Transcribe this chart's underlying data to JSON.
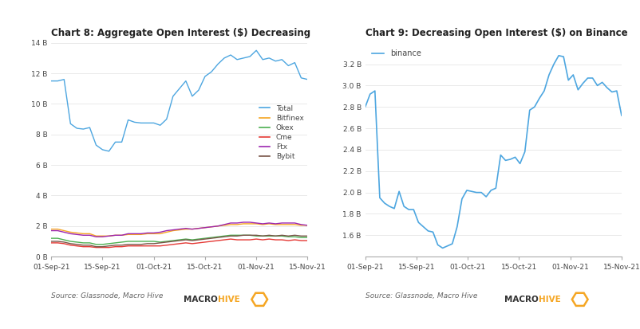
{
  "chart8": {
    "title": "Chart 8: Aggregate Open Interest ($) Decreasing",
    "x_labels": [
      "01-Sep-21",
      "15-Sep-21",
      "01-Oct-21",
      "15-Oct-21",
      "01-Nov-21",
      "15-Nov-21"
    ],
    "ylim": [
      0,
      14000000000
    ],
    "yticks": [
      0,
      2000000000,
      4000000000,
      6000000000,
      8000000000,
      10000000000,
      12000000000,
      14000000000
    ],
    "ytick_labels": [
      "0 B",
      "2 B",
      "4 B",
      "6 B",
      "8 B",
      "10 B",
      "12 B",
      "14 B"
    ],
    "series": {
      "Total": {
        "color": "#4da6e0",
        "values": [
          11500000000,
          11500000000,
          11600000000,
          8700000000,
          8400000000,
          8350000000,
          8450000000,
          7300000000,
          7000000000,
          6900000000,
          7500000000,
          7500000000,
          8950000000,
          8800000000,
          8750000000,
          8750000000,
          8750000000,
          8600000000,
          9000000000,
          10500000000,
          11000000000,
          11500000000,
          10500000000,
          10900000000,
          11800000000,
          12100000000,
          12600000000,
          13000000000,
          13200000000,
          12900000000,
          13000000000,
          13100000000,
          13500000000,
          12900000000,
          13000000000,
          12800000000,
          12900000000,
          12500000000,
          12700000000,
          11700000000,
          11600000000
        ]
      },
      "Bitfinex": {
        "color": "#f5a623",
        "values": [
          1800000000,
          1800000000,
          1700000000,
          1600000000,
          1550000000,
          1500000000,
          1500000000,
          1350000000,
          1350000000,
          1350000000,
          1400000000,
          1400000000,
          1450000000,
          1450000000,
          1450000000,
          1500000000,
          1500000000,
          1500000000,
          1600000000,
          1700000000,
          1750000000,
          1800000000,
          1800000000,
          1850000000,
          1900000000,
          1950000000,
          2000000000,
          2050000000,
          2100000000,
          2100000000,
          2150000000,
          2150000000,
          2150000000,
          2100000000,
          2150000000,
          2100000000,
          2100000000,
          2100000000,
          2100000000,
          2050000000,
          2050000000
        ]
      },
      "Okex": {
        "color": "#4caf50",
        "values": [
          1200000000,
          1200000000,
          1100000000,
          1000000000,
          950000000,
          900000000,
          900000000,
          800000000,
          800000000,
          850000000,
          900000000,
          950000000,
          1000000000,
          1000000000,
          1000000000,
          1000000000,
          1000000000,
          950000000,
          1000000000,
          1050000000,
          1100000000,
          1150000000,
          1100000000,
          1150000000,
          1200000000,
          1250000000,
          1300000000,
          1350000000,
          1400000000,
          1400000000,
          1400000000,
          1400000000,
          1350000000,
          1350000000,
          1350000000,
          1350000000,
          1350000000,
          1300000000,
          1300000000,
          1250000000,
          1250000000
        ]
      },
      "Cme": {
        "color": "#e53935",
        "values": [
          900000000,
          900000000,
          850000000,
          750000000,
          700000000,
          650000000,
          650000000,
          600000000,
          600000000,
          600000000,
          650000000,
          650000000,
          700000000,
          700000000,
          700000000,
          700000000,
          700000000,
          700000000,
          750000000,
          800000000,
          850000000,
          900000000,
          850000000,
          900000000,
          950000000,
          1000000000,
          1050000000,
          1100000000,
          1150000000,
          1100000000,
          1100000000,
          1100000000,
          1150000000,
          1100000000,
          1150000000,
          1100000000,
          1100000000,
          1050000000,
          1100000000,
          1050000000,
          1050000000
        ]
      },
      "Ftx": {
        "color": "#9c27b0",
        "values": [
          1700000000,
          1700000000,
          1600000000,
          1500000000,
          1450000000,
          1400000000,
          1400000000,
          1300000000,
          1300000000,
          1350000000,
          1400000000,
          1400000000,
          1500000000,
          1500000000,
          1500000000,
          1550000000,
          1550000000,
          1600000000,
          1700000000,
          1750000000,
          1800000000,
          1850000000,
          1800000000,
          1850000000,
          1900000000,
          1950000000,
          2000000000,
          2100000000,
          2200000000,
          2200000000,
          2250000000,
          2250000000,
          2200000000,
          2150000000,
          2200000000,
          2150000000,
          2200000000,
          2200000000,
          2200000000,
          2100000000,
          2050000000
        ]
      },
      "Bybit": {
        "color": "#795548",
        "values": [
          1000000000,
          1000000000,
          950000000,
          850000000,
          800000000,
          750000000,
          750000000,
          650000000,
          650000000,
          700000000,
          750000000,
          750000000,
          800000000,
          800000000,
          800000000,
          850000000,
          850000000,
          900000000,
          950000000,
          1000000000,
          1050000000,
          1100000000,
          1050000000,
          1100000000,
          1150000000,
          1200000000,
          1250000000,
          1300000000,
          1350000000,
          1350000000,
          1400000000,
          1400000000,
          1400000000,
          1350000000,
          1400000000,
          1350000000,
          1400000000,
          1350000000,
          1400000000,
          1350000000,
          1350000000
        ]
      }
    },
    "legend_names": [
      "Total",
      "Bitfinex",
      "Okex",
      "Cme",
      "Ftx",
      "Bybit"
    ],
    "source": "Source: Glassnode, Macro Hive"
  },
  "chart9": {
    "title": "Chart 9: Decreasing Open Interest ($) on Binance",
    "x_labels": [
      "01-Sep-21",
      "15-Sep-21",
      "01-Oct-21",
      "15-Oct-21",
      "01-Nov-21",
      "15-Nov-21"
    ],
    "ylim": [
      1400000000,
      3400000000
    ],
    "yticks": [
      1600000000,
      1800000000,
      2000000000,
      2200000000,
      2400000000,
      2600000000,
      2800000000,
      3000000000,
      3200000000
    ],
    "ytick_labels": [
      "1.6 B",
      "1.8 B",
      "2.0 B",
      "2.2 B",
      "2.4 B",
      "2.6 B",
      "2.8 B",
      "3.0 B",
      "3.2 B"
    ],
    "series": {
      "binance": {
        "color": "#4da6e0",
        "values": [
          2800000000,
          2920000000,
          2950000000,
          1950000000,
          1900000000,
          1870000000,
          1850000000,
          2010000000,
          1870000000,
          1840000000,
          1840000000,
          1720000000,
          1680000000,
          1640000000,
          1630000000,
          1510000000,
          1480000000,
          1500000000,
          1520000000,
          1680000000,
          1940000000,
          2020000000,
          2010000000,
          2000000000,
          2000000000,
          1960000000,
          2020000000,
          2040000000,
          2350000000,
          2300000000,
          2310000000,
          2330000000,
          2270000000,
          2380000000,
          2770000000,
          2800000000,
          2880000000,
          2950000000,
          3100000000,
          3200000000,
          3280000000,
          3270000000,
          3050000000,
          3100000000,
          2960000000,
          3020000000,
          3070000000,
          3070000000,
          3000000000,
          3030000000,
          2980000000,
          2940000000,
          2950000000,
          2720000000
        ]
      }
    },
    "source": "Source: Glassnode, Macro Hive"
  },
  "background_color": "#ffffff",
  "logo_orange": "#f5a623",
  "logo_dark": "#333333",
  "text_color": "#444444",
  "grid_color": "#e0e0e0",
  "spine_color": "#aaaaaa",
  "source_color": "#666666"
}
